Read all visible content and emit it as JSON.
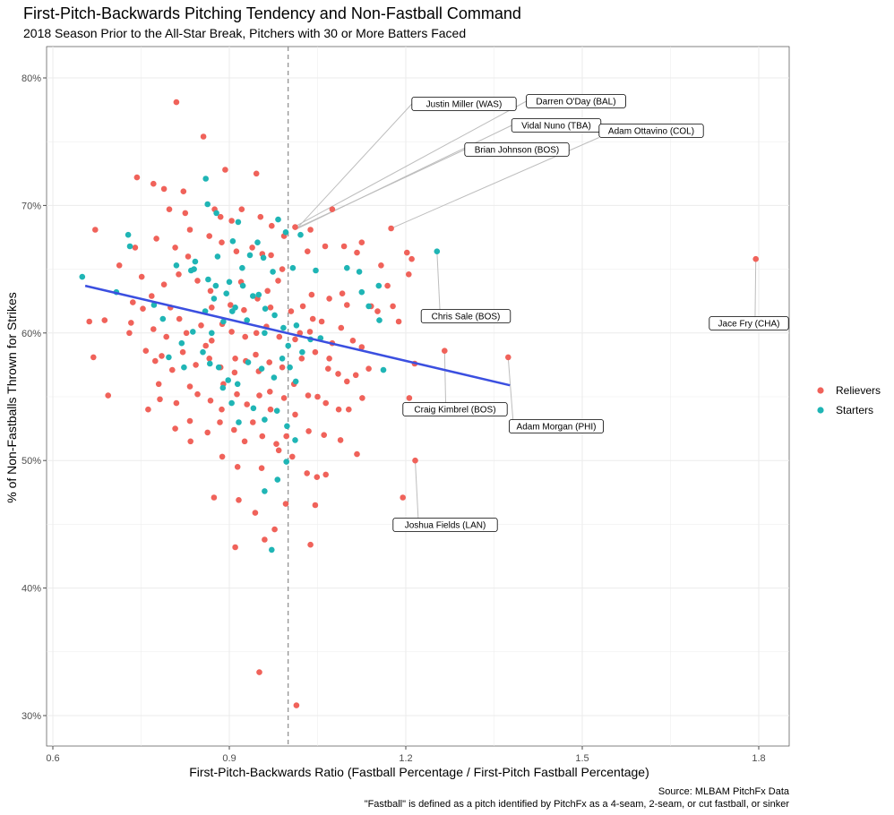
{
  "chart_data": {
    "type": "scatter",
    "title": "First-Pitch-Backwards Pitching Tendency and Non-Fastball Command",
    "subtitle": "2018 Season Prior to the All-Star Break, Pitchers with 30 or More Batters Faced",
    "xlabel": "First-Pitch-Backwards Ratio (Fastball Percentage / First-Pitch Fastball Percentage)",
    "ylabel": "% of Non-Fastballs Thrown for Strikes",
    "xlim": [
      0.6,
      1.8
    ],
    "ylim": [
      0.3,
      0.8
    ],
    "x_ticks": [
      0.6,
      0.9,
      1.2,
      1.5,
      1.8
    ],
    "x_tick_labels": [
      "0.6",
      "0.9",
      "1.2",
      "1.5",
      "1.8"
    ],
    "y_ticks": [
      0.3,
      0.4,
      0.5,
      0.6,
      0.7,
      0.8
    ],
    "y_tick_labels": [
      "30%",
      "40%",
      "50%",
      "60%",
      "70%",
      "80%"
    ],
    "grid": true,
    "legend_position": "right",
    "reference_line_x": 1.0,
    "trend_line": {
      "x": [
        0.655,
        1.377
      ],
      "y": [
        0.637,
        0.559
      ],
      "color": "#3b4fe0"
    },
    "caption": [
      "Source: MLBAM PitchFx Data",
      "\"Fastball\" is defined as a pitch identified by PitchFx as a 4-seam, 2-seam, or cut fastball, or sinker"
    ],
    "series": [
      {
        "name": "Relievers",
        "color": "#f0625a",
        "points": [
          [
            0.81,
            0.781
          ],
          [
            0.856,
            0.754
          ],
          [
            0.946,
            0.725
          ],
          [
            0.893,
            0.728
          ],
          [
            0.743,
            0.722
          ],
          [
            0.771,
            0.717
          ],
          [
            0.789,
            0.713
          ],
          [
            0.822,
            0.711
          ],
          [
            0.798,
            0.697
          ],
          [
            0.825,
            0.694
          ],
          [
            0.875,
            0.697
          ],
          [
            0.904,
            0.688
          ],
          [
            0.921,
            0.697
          ],
          [
            0.953,
            0.691
          ],
          [
            0.972,
            0.684
          ],
          [
            0.885,
            0.691
          ],
          [
            0.776,
            0.674
          ],
          [
            0.808,
            0.667
          ],
          [
            0.833,
            0.681
          ],
          [
            0.866,
            0.676
          ],
          [
            0.887,
            0.671
          ],
          [
            0.912,
            0.664
          ],
          [
            0.939,
            0.667
          ],
          [
            0.956,
            0.662
          ],
          [
            0.971,
            0.661
          ],
          [
            0.993,
            0.676
          ],
          [
            1.012,
            0.683
          ],
          [
            1.038,
            0.681
          ],
          [
            1.075,
            0.697
          ],
          [
            1.063,
            0.668
          ],
          [
            1.033,
            0.664
          ],
          [
            1.095,
            0.668
          ],
          [
            1.117,
            0.663
          ],
          [
            1.125,
            0.671
          ],
          [
            1.158,
            0.653
          ],
          [
            1.175,
            0.682
          ],
          [
            1.205,
            0.646
          ],
          [
            1.21,
            0.658
          ],
          [
            1.202,
            0.663
          ],
          [
            0.672,
            0.681
          ],
          [
            0.74,
            0.667
          ],
          [
            0.713,
            0.653
          ],
          [
            0.751,
            0.644
          ],
          [
            0.768,
            0.629
          ],
          [
            0.789,
            0.638
          ],
          [
            0.814,
            0.646
          ],
          [
            0.846,
            0.641
          ],
          [
            0.868,
            0.633
          ],
          [
            0.902,
            0.622
          ],
          [
            0.925,
            0.618
          ],
          [
            0.948,
            0.627
          ],
          [
            0.965,
            0.633
          ],
          [
            0.983,
            0.641
          ],
          [
            1.005,
            0.617
          ],
          [
            1.025,
            0.621
          ],
          [
            1.042,
            0.611
          ],
          [
            1.07,
            0.627
          ],
          [
            1.092,
            0.631
          ],
          [
            1.1,
            0.622
          ],
          [
            1.141,
            0.621
          ],
          [
            1.152,
            0.617
          ],
          [
            1.169,
            0.637
          ],
          [
            1.188,
            0.609
          ],
          [
            1.178,
            0.621
          ],
          [
            0.662,
            0.609
          ],
          [
            0.688,
            0.61
          ],
          [
            0.733,
            0.608
          ],
          [
            0.736,
            0.624
          ],
          [
            0.753,
            0.619
          ],
          [
            0.771,
            0.603
          ],
          [
            0.793,
            0.597
          ],
          [
            0.815,
            0.611
          ],
          [
            0.827,
            0.6
          ],
          [
            0.852,
            0.606
          ],
          [
            0.87,
            0.594
          ],
          [
            0.888,
            0.607
          ],
          [
            0.904,
            0.601
          ],
          [
            0.927,
            0.597
          ],
          [
            0.946,
            0.6
          ],
          [
            0.963,
            0.605
          ],
          [
            0.985,
            0.597
          ],
          [
            1.012,
            0.595
          ],
          [
            1.037,
            0.601
          ],
          [
            1.057,
            0.609
          ],
          [
            1.075,
            0.592
          ],
          [
            1.09,
            0.604
          ],
          [
            1.11,
            0.594
          ],
          [
            1.125,
            0.589
          ],
          [
            0.669,
            0.581
          ],
          [
            0.758,
            0.586
          ],
          [
            0.774,
            0.578
          ],
          [
            0.785,
            0.582
          ],
          [
            0.803,
            0.571
          ],
          [
            0.821,
            0.585
          ],
          [
            0.843,
            0.575
          ],
          [
            0.866,
            0.58
          ],
          [
            0.885,
            0.573
          ],
          [
            0.909,
            0.569
          ],
          [
            0.928,
            0.578
          ],
          [
            0.945,
            0.583
          ],
          [
            0.968,
            0.577
          ],
          [
            0.99,
            0.573
          ],
          [
            1.023,
            0.58
          ],
          [
            1.046,
            0.585
          ],
          [
            1.068,
            0.572
          ],
          [
            1.085,
            0.568
          ],
          [
            1.1,
            0.562
          ],
          [
            1.137,
            0.572
          ],
          [
            1.115,
            0.567
          ],
          [
            1.266,
            0.586
          ],
          [
            1.374,
            0.581
          ],
          [
            1.215,
            0.576
          ],
          [
            0.694,
            0.551
          ],
          [
            0.762,
            0.54
          ],
          [
            0.782,
            0.548
          ],
          [
            0.81,
            0.545
          ],
          [
            0.833,
            0.558
          ],
          [
            0.846,
            0.552
          ],
          [
            0.868,
            0.547
          ],
          [
            0.887,
            0.54
          ],
          [
            0.913,
            0.552
          ],
          [
            0.93,
            0.544
          ],
          [
            0.951,
            0.551
          ],
          [
            0.969,
            0.554
          ],
          [
            0.993,
            0.549
          ],
          [
            1.012,
            0.536
          ],
          [
            1.034,
            0.551
          ],
          [
            1.064,
            0.545
          ],
          [
            1.086,
            0.54
          ],
          [
            1.103,
            0.54
          ],
          [
            1.126,
            0.549
          ],
          [
            1.206,
            0.549
          ],
          [
            0.808,
            0.525
          ],
          [
            0.833,
            0.531
          ],
          [
            0.863,
            0.522
          ],
          [
            0.884,
            0.53
          ],
          [
            0.908,
            0.524
          ],
          [
            0.926,
            0.515
          ],
          [
            0.956,
            0.519
          ],
          [
            0.98,
            0.513
          ],
          [
            0.997,
            0.519
          ],
          [
            1.035,
            0.523
          ],
          [
            1.061,
            0.52
          ],
          [
            1.089,
            0.516
          ],
          [
            1.117,
            0.505
          ],
          [
            0.834,
            0.515
          ],
          [
            0.888,
            0.503
          ],
          [
            0.914,
            0.495
          ],
          [
            0.955,
            0.494
          ],
          [
            0.984,
            0.508
          ],
          [
            1.007,
            0.503
          ],
          [
            1.032,
            0.49
          ],
          [
            1.049,
            0.487
          ],
          [
            1.064,
            0.489
          ],
          [
            1.216,
            0.5
          ],
          [
            0.874,
            0.471
          ],
          [
            0.916,
            0.469
          ],
          [
            0.944,
            0.459
          ],
          [
            0.96,
            0.438
          ],
          [
            0.996,
            0.466
          ],
          [
            1.046,
            0.465
          ],
          [
            1.195,
            0.471
          ],
          [
            0.91,
            0.432
          ],
          [
            0.977,
            0.446
          ],
          [
            1.038,
            0.434
          ],
          [
            0.951,
            0.334
          ],
          [
            1.014,
            0.308
          ],
          [
            1.795,
            0.658
          ],
          [
            0.73,
            0.6
          ],
          [
            0.8,
            0.62
          ],
          [
            0.86,
            0.59
          ],
          [
            0.92,
            0.64
          ],
          [
            0.95,
            0.57
          ],
          [
            0.99,
            0.65
          ],
          [
            1.02,
            0.6
          ],
          [
            1.05,
            0.55
          ],
          [
            0.78,
            0.56
          ],
          [
            0.83,
            0.66
          ],
          [
            0.89,
            0.56
          ],
          [
            0.94,
            0.53
          ],
          [
            0.97,
            0.62
          ],
          [
            1.01,
            0.56
          ],
          [
            1.04,
            0.63
          ],
          [
            0.87,
            0.62
          ],
          [
            0.91,
            0.58
          ],
          [
            0.97,
            0.54
          ],
          [
            1.07,
            0.58
          ]
        ]
      },
      {
        "name": "Starters",
        "color": "#1fb5b5",
        "points": [
          [
            0.65,
            0.644
          ],
          [
            0.728,
            0.677
          ],
          [
            0.731,
            0.668
          ],
          [
            0.708,
            0.632
          ],
          [
            0.772,
            0.622
          ],
          [
            0.81,
            0.653
          ],
          [
            0.835,
            0.649
          ],
          [
            0.842,
            0.656
          ],
          [
            0.863,
            0.701
          ],
          [
            0.86,
            0.721
          ],
          [
            0.878,
            0.694
          ],
          [
            0.864,
            0.642
          ],
          [
            0.877,
            0.637
          ],
          [
            0.895,
            0.631
          ],
          [
            0.915,
            0.687
          ],
          [
            0.906,
            0.672
          ],
          [
            0.922,
            0.651
          ],
          [
            0.935,
            0.661
          ],
          [
            0.948,
            0.671
          ],
          [
            0.958,
            0.659
          ],
          [
            0.974,
            0.648
          ],
          [
            0.983,
            0.689
          ],
          [
            0.996,
            0.679
          ],
          [
            1.008,
            0.651
          ],
          [
            1.021,
            0.677
          ],
          [
            1.047,
            0.649
          ],
          [
            1.1,
            0.651
          ],
          [
            1.121,
            0.648
          ],
          [
            1.253,
            0.664
          ],
          [
            1.125,
            0.632
          ],
          [
            1.154,
            0.637
          ],
          [
            1.137,
            0.621
          ],
          [
            1.155,
            0.61
          ],
          [
            1.162,
            0.571
          ],
          [
            0.787,
            0.611
          ],
          [
            0.819,
            0.592
          ],
          [
            0.838,
            0.601
          ],
          [
            0.859,
            0.617
          ],
          [
            0.874,
            0.627
          ],
          [
            0.89,
            0.609
          ],
          [
            0.905,
            0.617
          ],
          [
            0.923,
            0.637
          ],
          [
            0.94,
            0.629
          ],
          [
            0.961,
            0.619
          ],
          [
            0.977,
            0.614
          ],
          [
            0.992,
            0.604
          ],
          [
            1.014,
            0.606
          ],
          [
            1.038,
            0.595
          ],
          [
            1.055,
            0.596
          ],
          [
            0.797,
            0.581
          ],
          [
            0.823,
            0.573
          ],
          [
            0.855,
            0.585
          ],
          [
            0.867,
            0.576
          ],
          [
            0.882,
            0.573
          ],
          [
            0.898,
            0.563
          ],
          [
            0.914,
            0.56
          ],
          [
            0.932,
            0.577
          ],
          [
            0.955,
            0.572
          ],
          [
            0.976,
            0.565
          ],
          [
            1.003,
            0.573
          ],
          [
            1.013,
            0.562
          ],
          [
            1.024,
            0.585
          ],
          [
            0.889,
            0.557
          ],
          [
            0.904,
            0.545
          ],
          [
            0.916,
            0.53
          ],
          [
            0.941,
            0.541
          ],
          [
            0.96,
            0.532
          ],
          [
            0.981,
            0.539
          ],
          [
            0.998,
            0.527
          ],
          [
            1.012,
            0.516
          ],
          [
            0.96,
            0.476
          ],
          [
            0.982,
            0.485
          ],
          [
            0.997,
            0.499
          ],
          [
            0.972,
            0.43
          ],
          [
            0.84,
            0.65
          ],
          [
            0.88,
            0.66
          ],
          [
            0.9,
            0.64
          ],
          [
            0.93,
            0.61
          ],
          [
            0.96,
            0.6
          ],
          [
            0.99,
            0.58
          ],
          [
            0.87,
            0.6
          ],
          [
            0.91,
            0.62
          ],
          [
            0.95,
            0.63
          ],
          [
            1.0,
            0.59
          ]
        ]
      }
    ],
    "annotations": [
      {
        "label": "Justin Miller (WAS)",
        "x": 1.015,
        "y": 0.682
      },
      {
        "label": "Darren O'Day (BAL)",
        "x": 1.01,
        "y": 0.683
      },
      {
        "label": "Vidal Nuno (TBA)",
        "x": 1.012,
        "y": 0.681
      },
      {
        "label": "Adam Ottavino (COL)",
        "x": 1.175,
        "y": 0.682
      },
      {
        "label": "Brian Johnson (BOS)",
        "x": 1.018,
        "y": 0.683
      },
      {
        "label": "Chris Sale (BOS)",
        "x": 1.253,
        "y": 0.664
      },
      {
        "label": "Jace Fry (CHA)",
        "x": 1.795,
        "y": 0.658
      },
      {
        "label": "Craig Kimbrel (BOS)",
        "x": 1.266,
        "y": 0.586
      },
      {
        "label": "Adam Morgan (PHI)",
        "x": 1.374,
        "y": 0.581
      },
      {
        "label": "Joshua Fields (LAN)",
        "x": 1.216,
        "y": 0.5
      }
    ]
  }
}
